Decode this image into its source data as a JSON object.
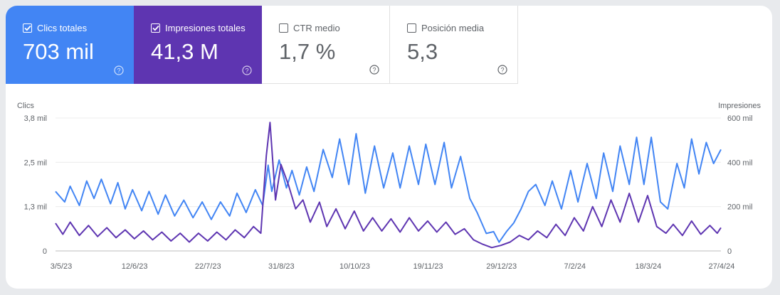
{
  "tiles": [
    {
      "label": "Clics totales",
      "value": "703 mil",
      "checked": true,
      "color": "#4285f4"
    },
    {
      "label": "Impresiones totales",
      "value": "41,3 M",
      "checked": true,
      "color": "#5e35b1"
    },
    {
      "label": "CTR medio",
      "value": "1,7 %",
      "checked": false,
      "color": "#ffffff"
    },
    {
      "label": "Posición media",
      "value": "5,3",
      "checked": false,
      "color": "#ffffff"
    }
  ],
  "chart_data": {
    "type": "line",
    "left_axis": {
      "label": "Clics",
      "ticks": [
        "0",
        "1,3 mil",
        "2,5 mil",
        "3,8 mil"
      ],
      "range": [
        0,
        3800
      ]
    },
    "right_axis": {
      "label": "Impresiones",
      "ticks": [
        "0",
        "200 mil",
        "400 mil",
        "600 mil"
      ],
      "range": [
        0,
        600000
      ]
    },
    "x_ticks": [
      "3/5/23",
      "12/6/23",
      "22/7/23",
      "31/8/23",
      "10/10/23",
      "19/11/23",
      "29/12/23",
      "7/2/24",
      "18/3/24",
      "27/4/24"
    ],
    "x_range": [
      "2023-05-03",
      "2024-04-30"
    ],
    "series": [
      {
        "name": "Clics",
        "axis": "left",
        "color": "#4285f4",
        "points": [
          [
            "2023-05-03",
            1700
          ],
          [
            "2023-05-08",
            1400
          ],
          [
            "2023-05-11",
            1850
          ],
          [
            "2023-05-16",
            1300
          ],
          [
            "2023-05-20",
            2000
          ],
          [
            "2023-05-24",
            1500
          ],
          [
            "2023-05-28",
            2050
          ],
          [
            "2023-06-02",
            1350
          ],
          [
            "2023-06-06",
            1950
          ],
          [
            "2023-06-10",
            1200
          ],
          [
            "2023-06-14",
            1750
          ],
          [
            "2023-06-19",
            1150
          ],
          [
            "2023-06-23",
            1700
          ],
          [
            "2023-06-28",
            1050
          ],
          [
            "2023-07-02",
            1600
          ],
          [
            "2023-07-07",
            1000
          ],
          [
            "2023-07-12",
            1450
          ],
          [
            "2023-07-17",
            950
          ],
          [
            "2023-07-22",
            1400
          ],
          [
            "2023-07-27",
            900
          ],
          [
            "2023-08-01",
            1400
          ],
          [
            "2023-08-06",
            1000
          ],
          [
            "2023-08-10",
            1650
          ],
          [
            "2023-08-15",
            1100
          ],
          [
            "2023-08-20",
            1750
          ],
          [
            "2023-08-24",
            1300
          ],
          [
            "2023-08-27",
            2450
          ],
          [
            "2023-08-29",
            1700
          ],
          [
            "2023-09-02",
            2600
          ],
          [
            "2023-09-06",
            1800
          ],
          [
            "2023-09-09",
            2300
          ],
          [
            "2023-09-13",
            1600
          ],
          [
            "2023-09-17",
            2400
          ],
          [
            "2023-09-21",
            1700
          ],
          [
            "2023-09-26",
            2900
          ],
          [
            "2023-10-01",
            2100
          ],
          [
            "2023-10-05",
            3200
          ],
          [
            "2023-10-10",
            1900
          ],
          [
            "2023-10-14",
            3350
          ],
          [
            "2023-10-19",
            1650
          ],
          [
            "2023-10-24",
            3000
          ],
          [
            "2023-10-29",
            1800
          ],
          [
            "2023-11-03",
            2800
          ],
          [
            "2023-11-07",
            1800
          ],
          [
            "2023-11-12",
            3000
          ],
          [
            "2023-11-17",
            1900
          ],
          [
            "2023-11-21",
            3050
          ],
          [
            "2023-11-26",
            1900
          ],
          [
            "2023-12-01",
            3100
          ],
          [
            "2023-12-05",
            1800
          ],
          [
            "2023-12-10",
            2700
          ],
          [
            "2023-12-15",
            1500
          ],
          [
            "2023-12-19",
            1100
          ],
          [
            "2023-12-24",
            500
          ],
          [
            "2023-12-28",
            550
          ],
          [
            "2023-12-31",
            250
          ],
          [
            "2024-01-04",
            550
          ],
          [
            "2024-01-08",
            800
          ],
          [
            "2024-01-12",
            1200
          ],
          [
            "2024-01-16",
            1700
          ],
          [
            "2024-01-20",
            1900
          ],
          [
            "2024-01-25",
            1300
          ],
          [
            "2024-01-29",
            2000
          ],
          [
            "2024-02-03",
            1200
          ],
          [
            "2024-02-08",
            2300
          ],
          [
            "2024-02-12",
            1400
          ],
          [
            "2024-02-17",
            2500
          ],
          [
            "2024-02-22",
            1500
          ],
          [
            "2024-02-26",
            2800
          ],
          [
            "2024-03-02",
            1700
          ],
          [
            "2024-03-06",
            3000
          ],
          [
            "2024-03-11",
            1900
          ],
          [
            "2024-03-15",
            3250
          ],
          [
            "2024-03-19",
            1900
          ],
          [
            "2024-03-23",
            3250
          ],
          [
            "2024-03-28",
            1400
          ],
          [
            "2024-04-01",
            1200
          ],
          [
            "2024-04-06",
            2500
          ],
          [
            "2024-04-10",
            1800
          ],
          [
            "2024-04-14",
            3200
          ],
          [
            "2024-04-18",
            2200
          ],
          [
            "2024-04-22",
            3100
          ],
          [
            "2024-04-26",
            2500
          ],
          [
            "2024-04-30",
            2900
          ]
        ]
      },
      {
        "name": "Impresiones",
        "axis": "right",
        "color": "#5e35b1",
        "points": [
          [
            "2023-05-03",
            125000
          ],
          [
            "2023-05-07",
            75000
          ],
          [
            "2023-05-11",
            130000
          ],
          [
            "2023-05-16",
            70000
          ],
          [
            "2023-05-21",
            115000
          ],
          [
            "2023-05-26",
            65000
          ],
          [
            "2023-05-31",
            105000
          ],
          [
            "2023-06-05",
            60000
          ],
          [
            "2023-06-10",
            95000
          ],
          [
            "2023-06-15",
            55000
          ],
          [
            "2023-06-20",
            90000
          ],
          [
            "2023-06-25",
            50000
          ],
          [
            "2023-06-30",
            85000
          ],
          [
            "2023-07-05",
            45000
          ],
          [
            "2023-07-10",
            80000
          ],
          [
            "2023-07-15",
            40000
          ],
          [
            "2023-07-20",
            80000
          ],
          [
            "2023-07-25",
            45000
          ],
          [
            "2023-07-30",
            85000
          ],
          [
            "2023-08-04",
            50000
          ],
          [
            "2023-08-09",
            95000
          ],
          [
            "2023-08-14",
            60000
          ],
          [
            "2023-08-19",
            110000
          ],
          [
            "2023-08-23",
            80000
          ],
          [
            "2023-08-26",
            430000
          ],
          [
            "2023-08-28",
            580000
          ],
          [
            "2023-08-31",
            230000
          ],
          [
            "2023-09-03",
            390000
          ],
          [
            "2023-09-07",
            300000
          ],
          [
            "2023-09-11",
            190000
          ],
          [
            "2023-09-15",
            230000
          ],
          [
            "2023-09-19",
            130000
          ],
          [
            "2023-09-24",
            220000
          ],
          [
            "2023-09-28",
            110000
          ],
          [
            "2023-10-03",
            190000
          ],
          [
            "2023-10-08",
            100000
          ],
          [
            "2023-10-13",
            180000
          ],
          [
            "2023-10-18",
            90000
          ],
          [
            "2023-10-23",
            150000
          ],
          [
            "2023-10-28",
            90000
          ],
          [
            "2023-11-02",
            145000
          ],
          [
            "2023-11-07",
            85000
          ],
          [
            "2023-11-12",
            150000
          ],
          [
            "2023-11-17",
            90000
          ],
          [
            "2023-11-22",
            135000
          ],
          [
            "2023-11-27",
            85000
          ],
          [
            "2023-12-02",
            130000
          ],
          [
            "2023-12-07",
            75000
          ],
          [
            "2023-12-12",
            100000
          ],
          [
            "2023-12-17",
            50000
          ],
          [
            "2023-12-22",
            30000
          ],
          [
            "2023-12-27",
            15000
          ],
          [
            "2024-01-01",
            25000
          ],
          [
            "2024-01-06",
            40000
          ],
          [
            "2024-01-11",
            70000
          ],
          [
            "2024-01-16",
            50000
          ],
          [
            "2024-01-21",
            90000
          ],
          [
            "2024-01-26",
            60000
          ],
          [
            "2024-01-31",
            120000
          ],
          [
            "2024-02-05",
            70000
          ],
          [
            "2024-02-10",
            150000
          ],
          [
            "2024-02-15",
            90000
          ],
          [
            "2024-02-20",
            200000
          ],
          [
            "2024-02-25",
            110000
          ],
          [
            "2024-03-01",
            230000
          ],
          [
            "2024-03-06",
            130000
          ],
          [
            "2024-03-11",
            260000
          ],
          [
            "2024-03-16",
            130000
          ],
          [
            "2024-03-21",
            250000
          ],
          [
            "2024-03-26",
            110000
          ],
          [
            "2024-03-31",
            80000
          ],
          [
            "2024-04-04",
            120000
          ],
          [
            "2024-04-09",
            70000
          ],
          [
            "2024-04-14",
            135000
          ],
          [
            "2024-04-19",
            75000
          ],
          [
            "2024-04-24",
            115000
          ],
          [
            "2024-04-28",
            80000
          ],
          [
            "2024-04-30",
            105000
          ]
        ]
      }
    ],
    "grid": true,
    "legend": "none"
  }
}
